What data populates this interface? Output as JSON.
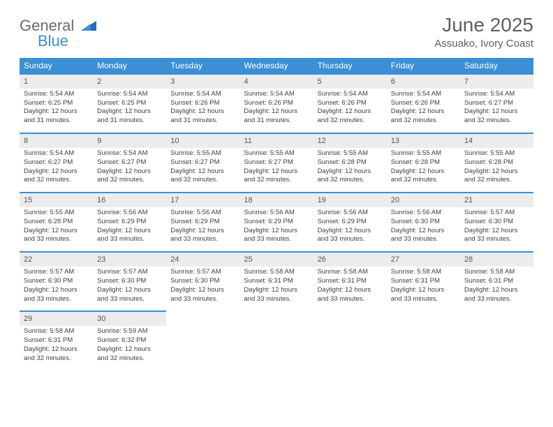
{
  "logo": {
    "general": "General",
    "blue": "Blue"
  },
  "title": "June 2025",
  "location": "Assuako, Ivory Coast",
  "colors": {
    "header_bg": "#3b8fd4",
    "header_text": "#ffffff",
    "daynum_bg": "#ececec",
    "daynum_border": "#3b8fd4",
    "body_text": "#404040",
    "title_text": "#606060"
  },
  "week_header": [
    "Sunday",
    "Monday",
    "Tuesday",
    "Wednesday",
    "Thursday",
    "Friday",
    "Saturday"
  ],
  "days": [
    {
      "n": 1,
      "sr": "5:54 AM",
      "ss": "6:25 PM",
      "dl": "12 hours and 31 minutes."
    },
    {
      "n": 2,
      "sr": "5:54 AM",
      "ss": "6:25 PM",
      "dl": "12 hours and 31 minutes."
    },
    {
      "n": 3,
      "sr": "5:54 AM",
      "ss": "6:26 PM",
      "dl": "12 hours and 31 minutes."
    },
    {
      "n": 4,
      "sr": "5:54 AM",
      "ss": "6:26 PM",
      "dl": "12 hours and 31 minutes."
    },
    {
      "n": 5,
      "sr": "5:54 AM",
      "ss": "6:26 PM",
      "dl": "12 hours and 32 minutes."
    },
    {
      "n": 6,
      "sr": "5:54 AM",
      "ss": "6:26 PM",
      "dl": "12 hours and 32 minutes."
    },
    {
      "n": 7,
      "sr": "5:54 AM",
      "ss": "6:27 PM",
      "dl": "12 hours and 32 minutes."
    },
    {
      "n": 8,
      "sr": "5:54 AM",
      "ss": "6:27 PM",
      "dl": "12 hours and 32 minutes."
    },
    {
      "n": 9,
      "sr": "5:54 AM",
      "ss": "6:27 PM",
      "dl": "12 hours and 32 minutes."
    },
    {
      "n": 10,
      "sr": "5:55 AM",
      "ss": "6:27 PM",
      "dl": "12 hours and 32 minutes."
    },
    {
      "n": 11,
      "sr": "5:55 AM",
      "ss": "6:27 PM",
      "dl": "12 hours and 32 minutes."
    },
    {
      "n": 12,
      "sr": "5:55 AM",
      "ss": "6:28 PM",
      "dl": "12 hours and 32 minutes."
    },
    {
      "n": 13,
      "sr": "5:55 AM",
      "ss": "6:28 PM",
      "dl": "12 hours and 32 minutes."
    },
    {
      "n": 14,
      "sr": "5:55 AM",
      "ss": "6:28 PM",
      "dl": "12 hours and 32 minutes."
    },
    {
      "n": 15,
      "sr": "5:55 AM",
      "ss": "6:28 PM",
      "dl": "12 hours and 33 minutes."
    },
    {
      "n": 16,
      "sr": "5:56 AM",
      "ss": "6:29 PM",
      "dl": "12 hours and 33 minutes."
    },
    {
      "n": 17,
      "sr": "5:56 AM",
      "ss": "6:29 PM",
      "dl": "12 hours and 33 minutes."
    },
    {
      "n": 18,
      "sr": "5:56 AM",
      "ss": "6:29 PM",
      "dl": "12 hours and 33 minutes."
    },
    {
      "n": 19,
      "sr": "5:56 AM",
      "ss": "6:29 PM",
      "dl": "12 hours and 33 minutes."
    },
    {
      "n": 20,
      "sr": "5:56 AM",
      "ss": "6:30 PM",
      "dl": "12 hours and 33 minutes."
    },
    {
      "n": 21,
      "sr": "5:57 AM",
      "ss": "6:30 PM",
      "dl": "12 hours and 33 minutes."
    },
    {
      "n": 22,
      "sr": "5:57 AM",
      "ss": "6:30 PM",
      "dl": "12 hours and 33 minutes."
    },
    {
      "n": 23,
      "sr": "5:57 AM",
      "ss": "6:30 PM",
      "dl": "12 hours and 33 minutes."
    },
    {
      "n": 24,
      "sr": "5:57 AM",
      "ss": "6:30 PM",
      "dl": "12 hours and 33 minutes."
    },
    {
      "n": 25,
      "sr": "5:58 AM",
      "ss": "6:31 PM",
      "dl": "12 hours and 33 minutes."
    },
    {
      "n": 26,
      "sr": "5:58 AM",
      "ss": "6:31 PM",
      "dl": "12 hours and 33 minutes."
    },
    {
      "n": 27,
      "sr": "5:58 AM",
      "ss": "6:31 PM",
      "dl": "12 hours and 33 minutes."
    },
    {
      "n": 28,
      "sr": "5:58 AM",
      "ss": "6:31 PM",
      "dl": "12 hours and 33 minutes."
    },
    {
      "n": 29,
      "sr": "5:58 AM",
      "ss": "6:31 PM",
      "dl": "12 hours and 32 minutes."
    },
    {
      "n": 30,
      "sr": "5:59 AM",
      "ss": "6:32 PM",
      "dl": "12 hours and 32 minutes."
    }
  ],
  "grid": {
    "columns": 7,
    "rows": 5,
    "start_weekday": 0
  },
  "labels": {
    "sunrise": "Sunrise:",
    "sunset": "Sunset:",
    "daylight": "Daylight:"
  }
}
